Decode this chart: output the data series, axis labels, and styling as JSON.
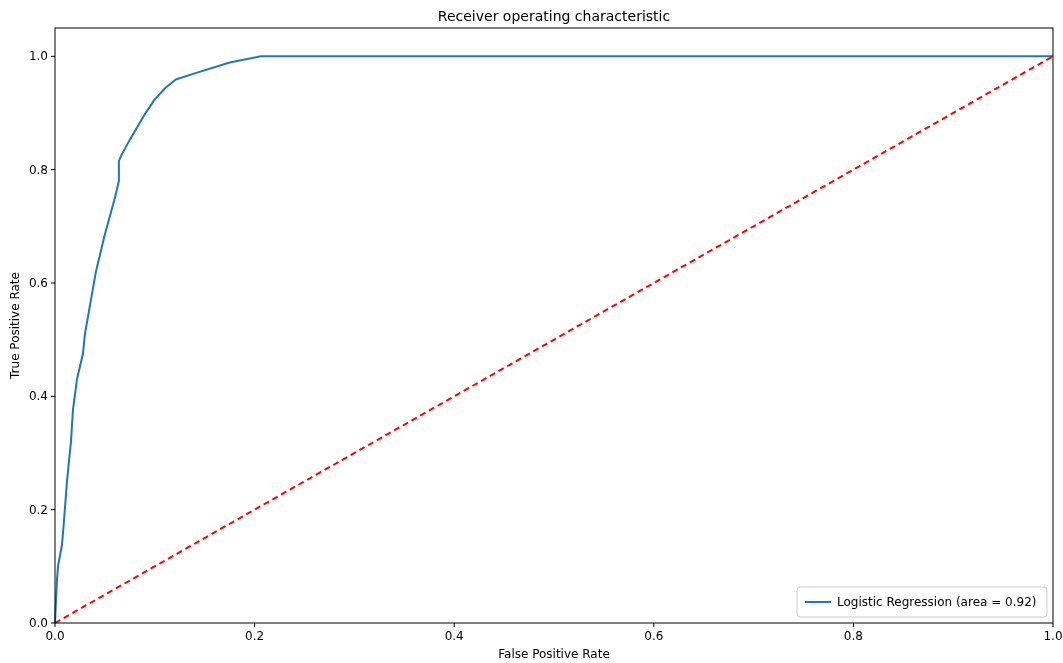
{
  "chart_data": {
    "type": "line",
    "title": "Receiver operating characteristic",
    "xlabel": "False Positive Rate",
    "ylabel": "True Positive Rate",
    "xlim": [
      0,
      1
    ],
    "ylim": [
      0,
      1.05
    ],
    "xticks": [
      {
        "value": 0,
        "label": "0.0"
      },
      0.2,
      0.4,
      0.6,
      0.8,
      {
        "value": 1,
        "label": "1.0"
      }
    ],
    "yticks": [
      {
        "value": 0,
        "label": "0.0"
      },
      0.2,
      0.4,
      0.6,
      0.8,
      {
        "value": 1,
        "label": "1.0"
      }
    ],
    "legend": "bottom right",
    "grid": false,
    "series": [
      {
        "name": "Logistic Regression (area = 0.92)",
        "color": "#1f77b4",
        "line_style": "solid",
        "x": [
          0,
          0.001,
          0.002,
          0.003,
          0.007,
          0.009,
          0.012,
          0.016,
          0.018,
          0.022,
          0.028,
          0.03,
          0.035,
          0.041,
          0.05,
          0.06,
          0.064,
          0.064,
          0.067,
          0.075,
          0.09,
          0.1,
          0.111,
          0.121,
          0.14,
          0.175,
          0.206,
          1
        ],
        "values": [
          0,
          0.04,
          0.076,
          0.1,
          0.138,
          0.18,
          0.25,
          0.32,
          0.376,
          0.43,
          0.475,
          0.51,
          0.56,
          0.62,
          0.686,
          0.75,
          0.78,
          0.815,
          0.827,
          0.853,
          0.898,
          0.924,
          0.945,
          0.959,
          0.97,
          0.989,
          1,
          1
        ]
      },
      {
        "color": "#ff0000",
        "line_style": "dashed",
        "x": [
          0,
          1
        ],
        "values": [
          0,
          1
        ]
      }
    ]
  }
}
